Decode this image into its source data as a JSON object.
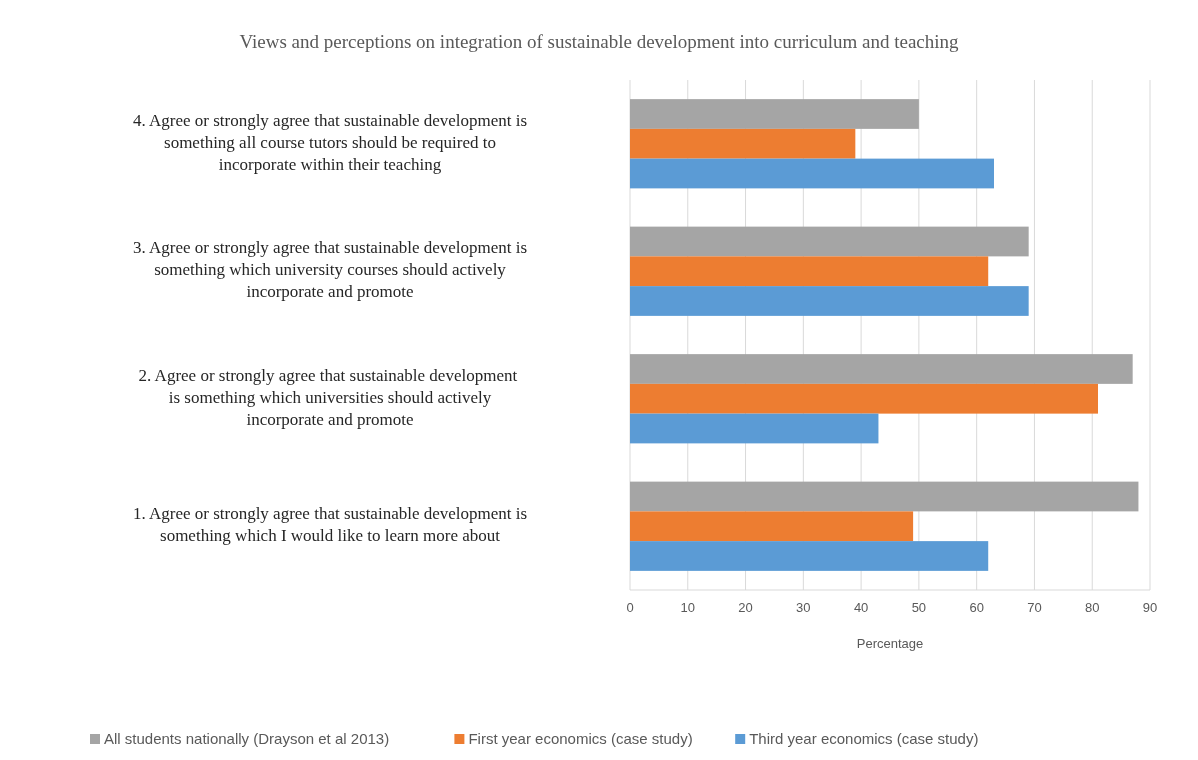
{
  "chart_data": {
    "type": "bar",
    "orientation": "horizontal",
    "title": "Views and perceptions on integration of sustainable development into curriculum and teaching",
    "xlabel": "Percentage",
    "categories": [
      "4. Agree or strongly agree that sustainable development is something all course tutors should be required to incorporate within their teaching",
      "3. Agree or strongly agree that sustainable development is something which university courses should actively incorporate and promote",
      "2. Agree or strongly agree that sustainable development  is something which universities should actively incorporate and promote",
      "1. Agree or strongly agree that sustainable development is something which I would like to learn more about"
    ],
    "series": [
      {
        "name": "All students nationally (Drayson et al 2013)",
        "color": "#a5a5a5",
        "values": [
          50,
          69,
          87,
          88
        ]
      },
      {
        "name": "First year economics (case study)",
        "color": "#ed7d31",
        "values": [
          39,
          62,
          81,
          49
        ]
      },
      {
        "name": "Third year economics (case study)",
        "color": "#5b9bd5",
        "values": [
          63,
          69,
          43,
          62
        ]
      }
    ],
    "xlim": [
      0,
      90
    ],
    "xticks": [
      0,
      10,
      20,
      30,
      40,
      50,
      60,
      70,
      80,
      90
    ],
    "grid": "x",
    "legend": "bottom"
  }
}
